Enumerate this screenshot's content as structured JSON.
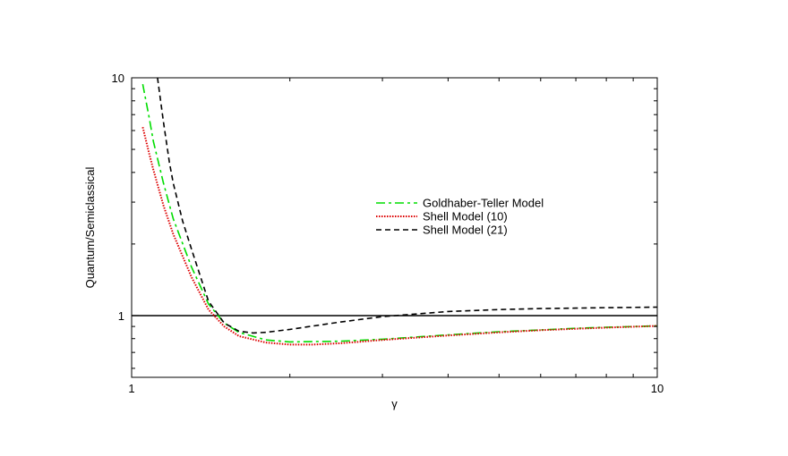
{
  "chart_data": {
    "type": "line",
    "title": "",
    "xlabel": "γ",
    "ylabel": "Quantum/Semiclassical",
    "xscale": "log",
    "yscale": "log",
    "xlim": [
      1,
      10
    ],
    "ylim": [
      0.55,
      10
    ],
    "x_tick_labels": [
      {
        "value": 1,
        "label": "1"
      },
      {
        "value": 10,
        "label": "10"
      }
    ],
    "y_tick_labels": [
      {
        "value": 1,
        "label": "1"
      },
      {
        "value": 10,
        "label": "10"
      }
    ],
    "grid": false,
    "legend_position": "upper-right",
    "reference_line": {
      "y": 1,
      "color": "#000000"
    },
    "series": [
      {
        "name": "Goldhaber-Teller Model",
        "color": "#00dd00",
        "style": "dashdot",
        "points": [
          [
            1.05,
            9.4
          ],
          [
            1.08,
            6.8
          ],
          [
            1.1,
            5.4
          ],
          [
            1.15,
            3.6
          ],
          [
            1.2,
            2.55
          ],
          [
            1.3,
            1.6
          ],
          [
            1.4,
            1.12
          ],
          [
            1.5,
            0.93
          ],
          [
            1.6,
            0.85
          ],
          [
            1.8,
            0.79
          ],
          [
            2.0,
            0.775
          ],
          [
            2.5,
            0.78
          ],
          [
            3.0,
            0.795
          ],
          [
            4.0,
            0.83
          ],
          [
            5.0,
            0.855
          ],
          [
            6.0,
            0.87
          ],
          [
            7.0,
            0.885
          ],
          [
            8.0,
            0.893
          ],
          [
            10.0,
            0.905
          ]
        ]
      },
      {
        "name": "Shell Model (10)",
        "color": "#dd0000",
        "style": "dotted",
        "points": [
          [
            1.05,
            6.2
          ],
          [
            1.08,
            4.8
          ],
          [
            1.1,
            4.1
          ],
          [
            1.15,
            2.9
          ],
          [
            1.2,
            2.2
          ],
          [
            1.3,
            1.45
          ],
          [
            1.4,
            1.06
          ],
          [
            1.5,
            0.9
          ],
          [
            1.6,
            0.82
          ],
          [
            1.8,
            0.77
          ],
          [
            2.0,
            0.755
          ],
          [
            2.2,
            0.755
          ],
          [
            2.5,
            0.765
          ],
          [
            3.0,
            0.79
          ],
          [
            4.0,
            0.825
          ],
          [
            5.0,
            0.85
          ],
          [
            6.0,
            0.868
          ],
          [
            7.0,
            0.88
          ],
          [
            8.0,
            0.89
          ],
          [
            10.0,
            0.905
          ]
        ]
      },
      {
        "name": "Shell Model (21)",
        "color": "#000000",
        "style": "dashed",
        "points": [
          [
            1.12,
            10.0
          ],
          [
            1.15,
            6.5
          ],
          [
            1.18,
            4.4
          ],
          [
            1.2,
            3.6
          ],
          [
            1.25,
            2.5
          ],
          [
            1.3,
            1.9
          ],
          [
            1.4,
            1.15
          ],
          [
            1.5,
            0.93
          ],
          [
            1.6,
            0.86
          ],
          [
            1.7,
            0.845
          ],
          [
            1.8,
            0.85
          ],
          [
            2.0,
            0.875
          ],
          [
            2.5,
            0.94
          ],
          [
            3.0,
            0.99
          ],
          [
            4.0,
            1.04
          ],
          [
            5.0,
            1.06
          ],
          [
            6.0,
            1.07
          ],
          [
            7.0,
            1.075
          ],
          [
            8.0,
            1.08
          ],
          [
            10.0,
            1.085
          ]
        ]
      }
    ]
  }
}
